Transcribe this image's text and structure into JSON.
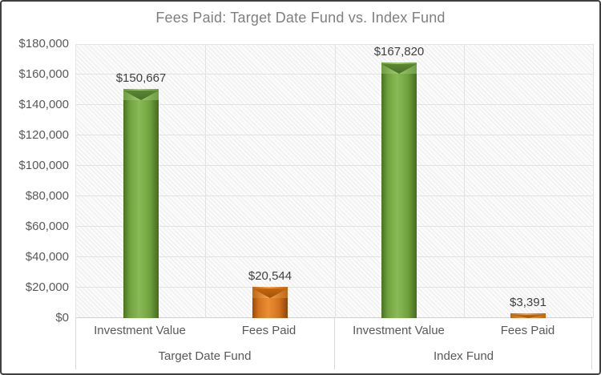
{
  "chart_data": {
    "type": "bar",
    "title": "Fees Paid: Target Date Fund vs. Index Fund",
    "ylabel": "",
    "xlabel": "",
    "y_axis": {
      "min": 0,
      "max": 180000,
      "step": 20000,
      "tick_labels": [
        "$0",
        "$20,000",
        "$40,000",
        "$60,000",
        "$80,000",
        "$100,000",
        "$120,000",
        "$140,000",
        "$160,000",
        "$180,000"
      ]
    },
    "grid": true,
    "legend_position": "none",
    "groups": [
      {
        "label": "Target Date Fund",
        "bars": [
          {
            "category": "Investment Value",
            "value": 150667,
            "value_label": "$150,667",
            "color": "green"
          },
          {
            "category": "Fees Paid",
            "value": 20544,
            "value_label": "$20,544",
            "color": "orange"
          }
        ]
      },
      {
        "label": "Index Fund",
        "bars": [
          {
            "category": "Investment Value",
            "value": 167820,
            "value_label": "$167,820",
            "color": "green"
          },
          {
            "category": "Fees Paid",
            "value": 3391,
            "value_label": "$3,391",
            "color": "orange"
          }
        ]
      }
    ],
    "palette": {
      "green": {
        "edge": "#4b7022",
        "edge2": "#476a1e",
        "body": "#6fa23d",
        "light": "#8aba57",
        "strip_light": "#9dc96e",
        "strip_dark": "#6f9d45",
        "notch_top": "#5a8634",
        "notch_bottom": "#4a7026"
      },
      "orange": {
        "edge": "#9a4a0a",
        "edge2": "#8f4408",
        "body": "#d4731f",
        "light": "#ea8e35",
        "strip_light": "#f2a452",
        "strip_dark": "#c06613",
        "notch_top": "#c0670f",
        "notch_bottom": "#a55208"
      }
    },
    "style_colors": {
      "frame_border": "#404040",
      "title_color": "#7f7f7f",
      "tick_color": "#595959",
      "category_color": "#595959",
      "value_label_color": "#3f3f3f",
      "gridline": "#e2e2e2",
      "axis_line": "#d0d0d0",
      "divider": "#d9d9d9",
      "hatch": "#ececec",
      "background": "#ffffff"
    }
  }
}
